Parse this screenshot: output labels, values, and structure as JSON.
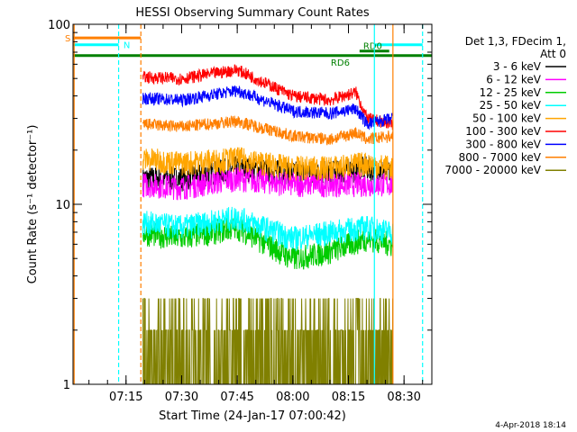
{
  "chart_data": {
    "type": "line",
    "title": "HESSI Observing Summary Count Rates",
    "xlabel": "Start Time (24-Jan-17 07:00:42)",
    "ylabel": "Count Rate (s⁻¹ detector⁻¹)",
    "y_scale": "log",
    "ylim": [
      1,
      100
    ],
    "xlim": [
      "07:00:42",
      "08:37:30"
    ],
    "x_ticks": [
      "07:15",
      "07:30",
      "07:45",
      "08:00",
      "08:15",
      "08:30"
    ],
    "y_ticks": [
      "1",
      "10",
      "100"
    ],
    "legend_header": [
      "Det 1,3, FDecim 1,",
      "Att 0"
    ],
    "legend_position": "right",
    "data_gap": [
      "07:10:30",
      "07:19:30"
    ],
    "series": [
      {
        "name": "3 - 6 keV",
        "color": "#000000",
        "x": [
          "07:19",
          "07:30",
          "07:45",
          "08:00",
          "08:10",
          "08:20",
          "08:27"
        ],
        "values": [
          14,
          14,
          16,
          15,
          15,
          16,
          15
        ]
      },
      {
        "name": "6 - 12 keV",
        "color": "#ff00ff",
        "x": [
          "07:19",
          "07:30",
          "07:45",
          "08:00",
          "08:10",
          "08:20",
          "08:27"
        ],
        "values": [
          13,
          12.5,
          14,
          13,
          13,
          13,
          13
        ]
      },
      {
        "name": "12 - 25 keV",
        "color": "#00cc00",
        "x": [
          "07:19",
          "07:30",
          "07:45",
          "08:00",
          "08:10",
          "08:20",
          "08:27"
        ],
        "values": [
          7,
          6.5,
          7.5,
          5,
          5.5,
          6.5,
          6
        ]
      },
      {
        "name": "25 - 50 keV",
        "color": "#00ffff",
        "x": [
          "07:19",
          "07:30",
          "07:45",
          "08:00",
          "08:10",
          "08:20",
          "08:27"
        ],
        "values": [
          8,
          7.5,
          8.5,
          6.5,
          7,
          7.5,
          7
        ]
      },
      {
        "name": "50 - 100 keV",
        "color": "#ffa500",
        "x": [
          "07:19",
          "07:30",
          "07:45",
          "08:00",
          "08:10",
          "08:20",
          "08:27"
        ],
        "values": [
          18,
          17,
          18,
          16,
          16,
          17,
          16
        ]
      },
      {
        "name": "100 - 300 keV",
        "color": "#ff0000",
        "x": [
          "07:19",
          "07:30",
          "07:45",
          "08:00",
          "08:10",
          "08:17",
          "08:20",
          "08:27"
        ],
        "values": [
          51,
          50,
          56,
          40,
          38,
          42,
          30,
          28
        ]
      },
      {
        "name": "300 - 800 keV",
        "color": "#0000ff",
        "x": [
          "07:19",
          "07:30",
          "07:45",
          "08:00",
          "08:10",
          "08:17",
          "08:20",
          "08:27"
        ],
        "values": [
          39,
          38,
          43,
          33,
          32,
          34,
          28,
          30
        ]
      },
      {
        "name": "800 - 7000 keV",
        "color": "#ff7f00",
        "x": [
          "07:19",
          "07:30",
          "07:45",
          "08:00",
          "08:10",
          "08:17",
          "08:20",
          "08:27"
        ],
        "values": [
          28,
          27,
          29,
          24,
          23,
          25,
          23,
          24
        ]
      },
      {
        "name": "7000 - 20000 keV",
        "color": "#808000",
        "x": [
          "07:19",
          "07:30",
          "07:45",
          "08:00",
          "08:10",
          "08:20",
          "08:27"
        ],
        "values": [
          2,
          2,
          2,
          2,
          2,
          2,
          2
        ]
      }
    ],
    "flag_bars": [
      {
        "label": "S",
        "color": "#ff7f00",
        "x": [
          "07:00:42",
          "07:19"
        ],
        "value": 84
      },
      {
        "label": "N",
        "color": "#00ffff",
        "x": [
          "07:00:42",
          "07:13"
        ],
        "value": 77
      },
      {
        "label": "",
        "color": "#00ffff",
        "x": [
          "08:22",
          "08:35"
        ],
        "value": 77
      },
      {
        "label": "RD0",
        "color": "#008000",
        "x": [
          "08:18",
          "08:26"
        ],
        "value": 71
      },
      {
        "label": "RD6",
        "color": "#008000",
        "x": [
          "07:00:42",
          "08:37:30"
        ],
        "value": 67
      }
    ],
    "vertical_markers": [
      {
        "x": "07:01",
        "color": "#ff7f00",
        "style": "solid"
      },
      {
        "x": "07:13",
        "color": "#00ffff",
        "style": "dashed"
      },
      {
        "x": "07:19",
        "color": "#ff7f00",
        "style": "dashed"
      },
      {
        "x": "08:22",
        "color": "#00ffff",
        "style": "solid"
      },
      {
        "x": "08:27",
        "color": "#ff7f00",
        "style": "solid"
      },
      {
        "x": "08:35",
        "color": "#00ffff",
        "style": "dashed"
      }
    ],
    "footer_timestamp": "4-Apr-2018 18:14"
  }
}
